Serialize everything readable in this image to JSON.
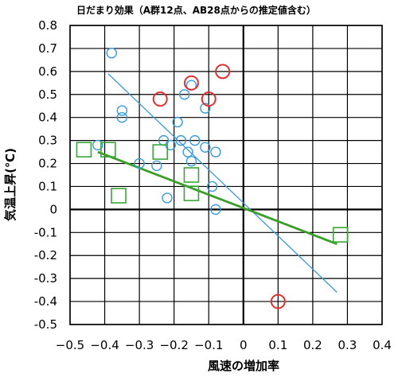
{
  "chart_data": {
    "type": "scatter",
    "title": "日だまり効果（A群12点、AB28点からの推定値含む）",
    "xlabel": "風速の増加率",
    "ylabel": "気温上昇(℃)",
    "xlim": [
      -0.5,
      0.4
    ],
    "ylim": [
      -0.5,
      0.8
    ],
    "x_ticks": [
      -0.5,
      -0.4,
      -0.3,
      -0.2,
      -0.1,
      0,
      0.1,
      0.2,
      0.3,
      0.4
    ],
    "x_tick_labels": [
      "−0.5",
      "−0.4",
      "−0.3",
      "−0.2",
      "−0.1",
      "0",
      "0.1",
      "0.2",
      "0.3",
      "0.4"
    ],
    "y_ticks": [
      -0.5,
      -0.4,
      -0.3,
      -0.2,
      -0.1,
      0,
      0.1,
      0.2,
      0.3,
      0.4,
      0.5,
      0.6,
      0.7,
      0.8
    ],
    "y_tick_labels": [
      "-0.5",
      "-0.4",
      "-0.3",
      "-0.2",
      "-0.1",
      "0",
      "0.1",
      "0.2",
      "0.3",
      "0.4",
      "0.5",
      "0.6",
      "0.7",
      "0.8"
    ],
    "grid": true,
    "series": [
      {
        "marker": "circle-small",
        "color": "#3a9ad9",
        "points": [
          [
            -0.38,
            0.68
          ],
          [
            -0.35,
            0.43
          ],
          [
            -0.35,
            0.4
          ],
          [
            -0.42,
            0.28
          ],
          [
            -0.3,
            0.2
          ],
          [
            -0.25,
            0.19
          ],
          [
            -0.23,
            0.3
          ],
          [
            -0.21,
            0.28
          ],
          [
            -0.22,
            0.05
          ],
          [
            -0.19,
            0.38
          ],
          [
            -0.17,
            0.5
          ],
          [
            -0.15,
            0.54
          ],
          [
            -0.18,
            0.3
          ],
          [
            -0.16,
            0.25
          ],
          [
            -0.14,
            0.3
          ],
          [
            -0.15,
            0.21
          ],
          [
            -0.11,
            0.44
          ],
          [
            -0.11,
            0.27
          ],
          [
            -0.08,
            0.25
          ],
          [
            -0.09,
            0.1
          ],
          [
            -0.08,
            0.0
          ]
        ]
      },
      {
        "marker": "circle-large",
        "color": "#e03030",
        "points": [
          [
            -0.24,
            0.48
          ],
          [
            -0.15,
            0.55
          ],
          [
            -0.1,
            0.48
          ],
          [
            -0.06,
            0.6
          ],
          [
            0.1,
            -0.4
          ]
        ]
      },
      {
        "marker": "square",
        "color": "#3aa63a",
        "points": [
          [
            -0.46,
            0.26
          ],
          [
            -0.39,
            0.26
          ],
          [
            -0.36,
            0.06
          ],
          [
            -0.24,
            0.25
          ],
          [
            -0.15,
            0.15
          ],
          [
            -0.15,
            0.07
          ],
          [
            0.28,
            -0.11
          ]
        ]
      }
    ],
    "trend_lines": [
      {
        "color": "#3a9ad9",
        "from": [
          -0.39,
          0.59
        ],
        "to": [
          0.27,
          -0.36
        ]
      },
      {
        "color": "#3a9e28",
        "from": [
          -0.42,
          0.25
        ],
        "to": [
          0.27,
          -0.15
        ]
      }
    ]
  }
}
